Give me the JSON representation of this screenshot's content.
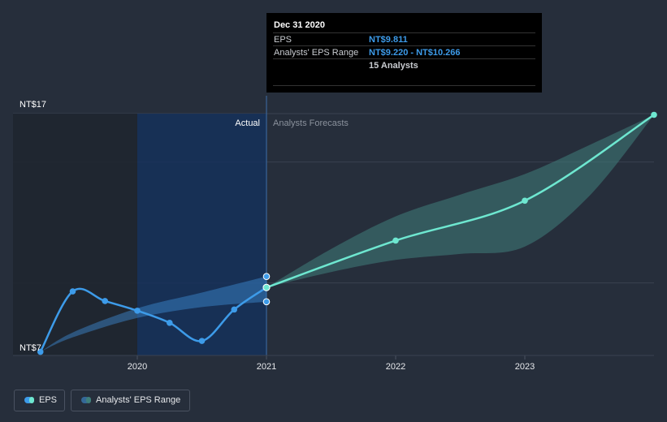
{
  "chart_data": {
    "type": "line",
    "x_ticks": [
      "2020",
      "2021",
      "2022",
      "2023"
    ],
    "y_ticks": [
      "NT$17",
      "NT$7"
    ],
    "ylim": [
      7,
      17
    ],
    "divider_label_left": "Actual",
    "divider_label_right": "Analysts Forecasts",
    "series": [
      {
        "name": "EPS",
        "kind": "actual",
        "color": "#3d9be9",
        "points": [
          [
            2019.25,
            7.15
          ],
          [
            2019.5,
            9.65
          ],
          [
            2019.75,
            9.25
          ],
          [
            2020.0,
            8.85
          ],
          [
            2020.25,
            8.35
          ],
          [
            2020.5,
            7.6
          ],
          [
            2020.75,
            8.9
          ],
          [
            2021.0,
            9.811
          ]
        ]
      },
      {
        "name": "EPS",
        "kind": "forecast",
        "color": "#6ee7d0",
        "points": [
          [
            2021.0,
            9.811
          ],
          [
            2022.0,
            11.75
          ],
          [
            2023.0,
            13.4
          ],
          [
            2024.0,
            16.95
          ]
        ]
      }
    ],
    "range_bands": [
      {
        "name": "Analysts' EPS Range",
        "kind": "actual",
        "color": "#3d8fd6",
        "x": [
          2019.25,
          2019.5,
          2020.0,
          2020.5,
          2021.0
        ],
        "low": [
          7.15,
          7.75,
          8.55,
          9.0,
          9.22
        ],
        "high": [
          7.15,
          7.95,
          8.95,
          9.6,
          10.266
        ]
      },
      {
        "name": "Analysts' EPS Range",
        "kind": "forecast",
        "color": "#3f7f7b",
        "x": [
          2021.0,
          2021.5,
          2022.0,
          2022.5,
          2023.0,
          2023.5,
          2024.0
        ],
        "low": [
          9.811,
          10.45,
          10.95,
          11.2,
          11.5,
          13.6,
          16.95
        ],
        "high": [
          9.811,
          11.4,
          12.75,
          13.65,
          14.5,
          15.7,
          16.95
        ]
      }
    ],
    "markers": [
      [
        2021.0,
        10.266
      ],
      [
        2021.0,
        9.22
      ]
    ],
    "highlight_x": 2021.0,
    "shaded_period": [
      2020.0,
      2021.0
    ],
    "grid": true
  },
  "tooltip": {
    "date": "Dec 31 2020",
    "rows": [
      {
        "label": "EPS",
        "value": "NT$9.811"
      },
      {
        "label": "Analysts' EPS Range",
        "value": "NT$9.220 - NT$10.266"
      },
      {
        "label": "",
        "value": "15 Analysts"
      }
    ]
  },
  "legend": {
    "eps_label": "EPS",
    "range_label": "Analysts' EPS Range"
  }
}
